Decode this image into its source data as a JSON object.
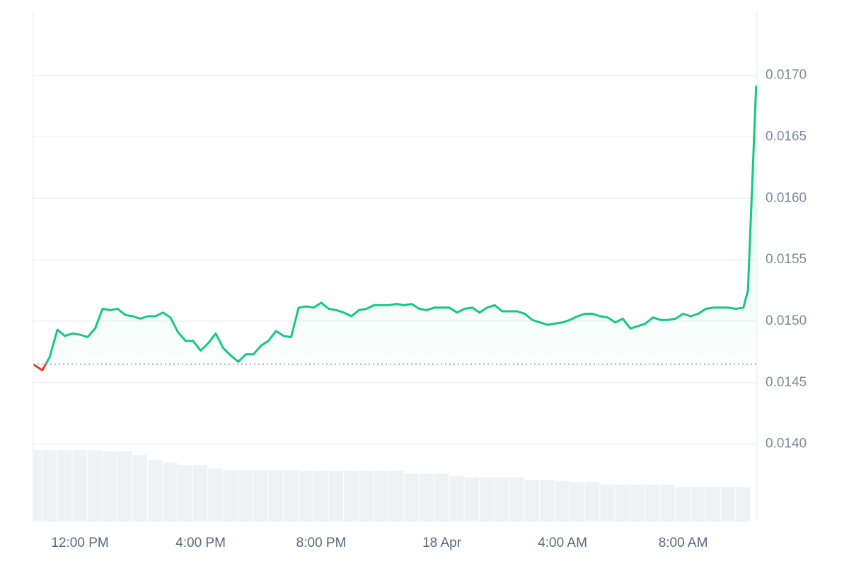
{
  "chart_data": {
    "type": "line",
    "xlim": [
      10.45,
      34.45
    ],
    "ylim": [
      0.01337,
      0.01751
    ],
    "xticks": [
      {
        "value": 12,
        "label": "12:00 PM"
      },
      {
        "value": 16,
        "label": "4:00 PM"
      },
      {
        "value": 20,
        "label": "8:00 PM"
      },
      {
        "value": 24,
        "label": "18 Apr"
      },
      {
        "value": 28,
        "label": "4:00 AM"
      },
      {
        "value": 32,
        "label": "8:00 AM"
      }
    ],
    "yticks": [
      {
        "value": 0.014,
        "label": "0.0140"
      },
      0.0145,
      {
        "value": 0.015,
        "label": "0.0150"
      },
      0.0155,
      {
        "value": 0.016,
        "label": "0.0160"
      },
      0.0165,
      {
        "value": 0.017,
        "label": "0.0170"
      }
    ],
    "grid": true,
    "baseline": 0.01465,
    "series": [
      {
        "type": "line",
        "color": "#16c784",
        "below_color": "#ea3943",
        "x": [
          10.5,
          10.75,
          11,
          11.25,
          11.5,
          11.75,
          12,
          12.25,
          12.5,
          12.75,
          13,
          13.25,
          13.5,
          13.75,
          14,
          14.25,
          14.5,
          14.75,
          15,
          15.25,
          15.5,
          15.75,
          16,
          16.25,
          16.5,
          16.75,
          17,
          17.25,
          17.5,
          17.75,
          18,
          18.25,
          18.5,
          18.75,
          19,
          19.25,
          19.5,
          19.75,
          20,
          20.25,
          20.5,
          20.75,
          21,
          21.25,
          21.5,
          21.75,
          22,
          22.25,
          22.5,
          22.75,
          23,
          23.25,
          23.5,
          23.75,
          24,
          24.25,
          24.5,
          24.75,
          25,
          25.25,
          25.5,
          25.75,
          26,
          26.25,
          26.5,
          26.75,
          27,
          27.25,
          27.5,
          27.75,
          28,
          28.25,
          28.5,
          28.75,
          29,
          29.25,
          29.5,
          29.75,
          30,
          30.25,
          30.5,
          30.75,
          31,
          31.25,
          31.5,
          31.75,
          32,
          32.25,
          32.5,
          32.75,
          33,
          33.25,
          33.5,
          33.75,
          34,
          34.15,
          34.42
        ],
        "values": [
          0.01464,
          0.0146,
          0.01471,
          0.01493,
          0.01488,
          0.0149,
          0.01489,
          0.01487,
          0.01494,
          0.0151,
          0.01509,
          0.0151,
          0.01505,
          0.01504,
          0.01502,
          0.01504,
          0.01504,
          0.01507,
          0.01503,
          0.01491,
          0.01484,
          0.01484,
          0.01476,
          0.01482,
          0.0149,
          0.01478,
          0.01472,
          0.01467,
          0.01473,
          0.01473,
          0.0148,
          0.01484,
          0.01492,
          0.01488,
          0.01487,
          0.01511,
          0.01512,
          0.01511,
          0.01515,
          0.0151,
          0.01509,
          0.01507,
          0.01504,
          0.01509,
          0.0151,
          0.01513,
          0.01513,
          0.01513,
          0.01514,
          0.01513,
          0.01514,
          0.0151,
          0.01509,
          0.01511,
          0.01511,
          0.01511,
          0.01507,
          0.0151,
          0.01511,
          0.01507,
          0.01511,
          0.01513,
          0.01508,
          0.01508,
          0.01508,
          0.01506,
          0.01501,
          0.01499,
          0.01497,
          0.01498,
          0.01499,
          0.01501,
          0.01504,
          0.01506,
          0.01506,
          0.01504,
          0.01503,
          0.01499,
          0.01502,
          0.01494,
          0.01496,
          0.01498,
          0.01503,
          0.01501,
          0.01501,
          0.01502,
          0.01506,
          0.01504,
          0.01506,
          0.0151,
          0.01511,
          0.01511,
          0.01511,
          0.0151,
          0.01511,
          0.01525,
          0.01691
        ]
      },
      {
        "type": "bar",
        "color": "#eff1f4",
        "x": [
          10.5,
          11,
          11.5,
          12,
          12.5,
          13,
          13.5,
          14,
          14.5,
          15,
          15.5,
          16,
          16.5,
          17,
          17.5,
          18,
          18.5,
          19,
          19.5,
          20,
          20.5,
          21,
          21.5,
          22,
          22.5,
          23,
          23.5,
          24,
          24.5,
          25,
          25.5,
          26,
          26.5,
          27,
          27.5,
          28,
          28.5,
          29,
          29.5,
          30,
          30.5,
          31,
          31.5,
          32,
          32.5,
          33,
          33.5,
          34
        ],
        "values": [
          0.01395,
          0.01395,
          0.01395,
          0.01395,
          0.01395,
          0.01394,
          0.01394,
          0.01391,
          0.01387,
          0.01385,
          0.01383,
          0.01383,
          0.0138,
          0.01379,
          0.01379,
          0.01379,
          0.01379,
          0.01379,
          0.01378,
          0.01378,
          0.01378,
          0.01378,
          0.01378,
          0.01378,
          0.01378,
          0.01376,
          0.01376,
          0.01376,
          0.01374,
          0.01373,
          0.01373,
          0.01373,
          0.01373,
          0.01371,
          0.01371,
          0.0137,
          0.01369,
          0.01369,
          0.01367,
          0.01367,
          0.01367,
          0.01367,
          0.01367,
          0.01365,
          0.01365,
          0.01365,
          0.01365,
          0.01365
        ]
      }
    ]
  }
}
